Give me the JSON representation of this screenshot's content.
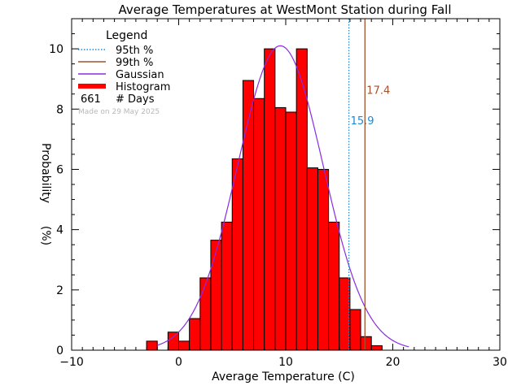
{
  "chart_data": {
    "type": "bar",
    "title": "Average Temperatures at WestMont Station during Fall",
    "xlabel": "Average Temperature (C)",
    "ylabel_top": "Probability",
    "ylabel_bottom": "(%)",
    "xlim": [
      -10,
      30
    ],
    "ylim": [
      0,
      11
    ],
    "x_ticks": [
      -10,
      0,
      10,
      20,
      30
    ],
    "y_ticks": [
      0,
      2,
      4,
      6,
      8,
      10
    ],
    "bin_width": 1,
    "bin_starts": [
      -3,
      -2,
      -1,
      0,
      1,
      2,
      3,
      4,
      5,
      6,
      7,
      8,
      9,
      10,
      11,
      12,
      13,
      14,
      15,
      16,
      17,
      18,
      19
    ],
    "values": [
      0.3,
      0.0,
      0.6,
      0.3,
      1.05,
      2.4,
      3.65,
      4.25,
      6.35,
      8.95,
      8.35,
      10.0,
      8.05,
      7.9,
      10.0,
      6.05,
      6.0,
      4.25,
      2.4,
      1.35,
      0.45,
      0.15,
      0.0
    ],
    "gaussian": {
      "mean": 9.5,
      "sigma": 4.0,
      "peak": 10.1,
      "range": [
        -2,
        21.5
      ]
    },
    "percentiles": [
      {
        "name": "95th %",
        "value": 15.9,
        "label": "15.9",
        "color": "#1a8ad4",
        "style": "dotted"
      },
      {
        "name": "99th %",
        "value": 17.4,
        "label": "17.4",
        "color": "#a0522d",
        "style": "solid"
      }
    ],
    "legend": {
      "title": "Legend",
      "placement": "top-left",
      "entries": [
        {
          "label": "95th %",
          "color": "#1a8ad4",
          "style": "dotted"
        },
        {
          "label": "99th %",
          "color": "#a0522d",
          "style": "solid"
        },
        {
          "label": "Gaussian",
          "color": "#8a2be2",
          "style": "solid"
        },
        {
          "label": "Histogram",
          "color": "#ff0000",
          "style": "thick"
        }
      ],
      "days_count": "661",
      "days_label": "# Days",
      "made_on": "Made on 29 May 2025"
    },
    "colors": {
      "histogram_fill": "#ff0000",
      "gaussian": "#8a2be2"
    }
  }
}
